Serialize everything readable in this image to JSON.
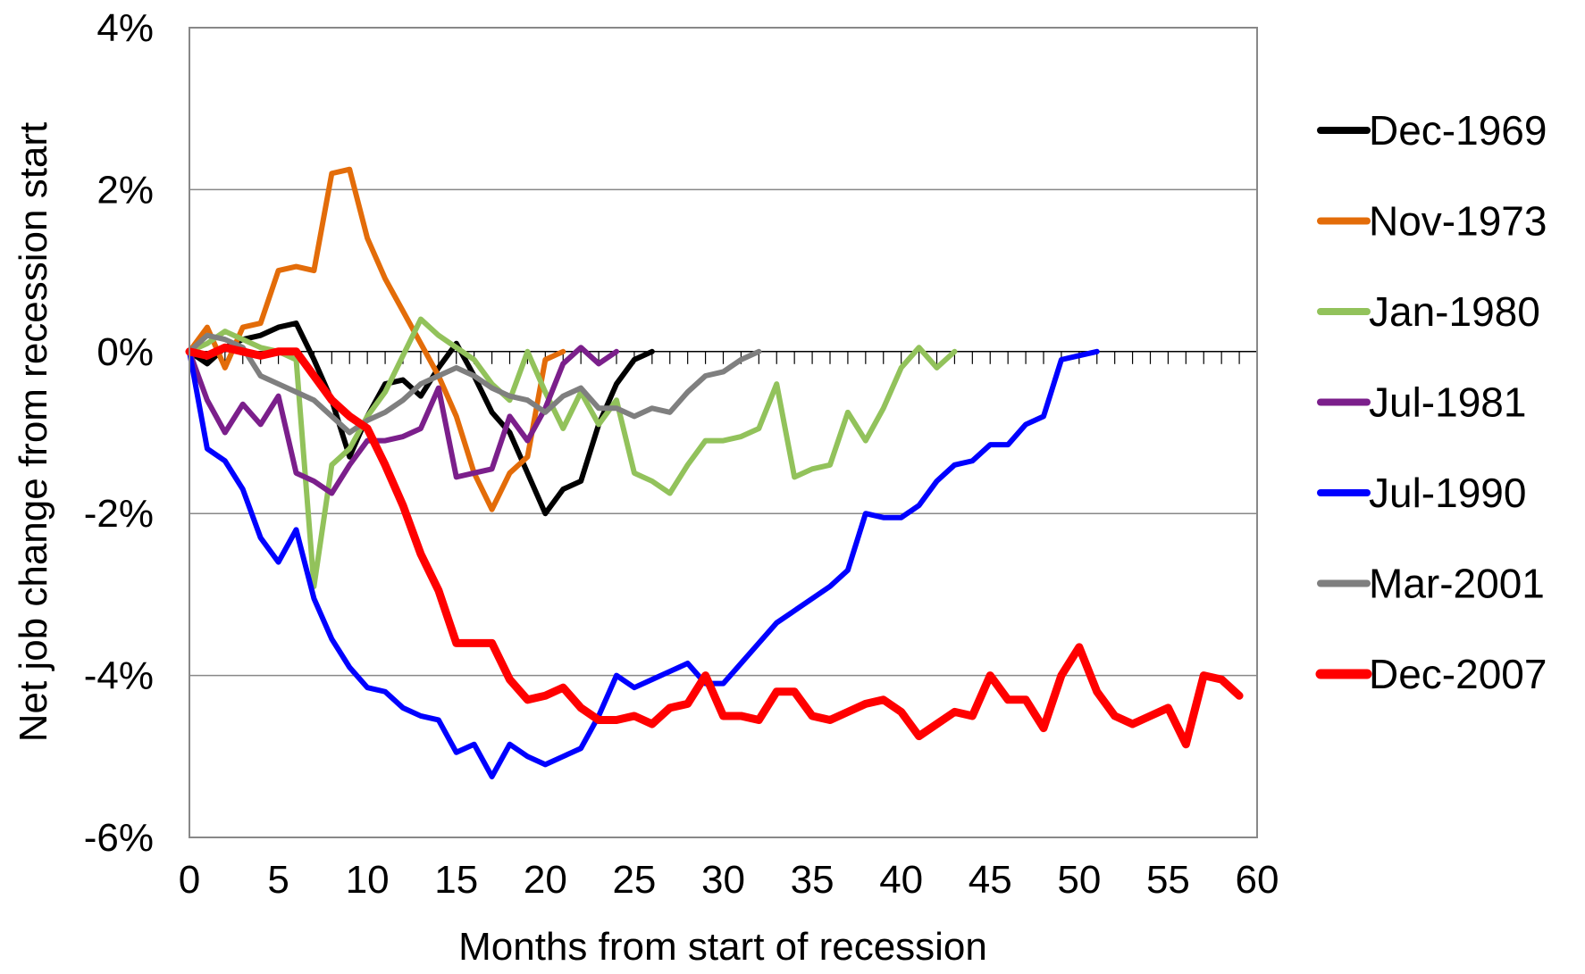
{
  "chart_data": {
    "type": "line",
    "title": "",
    "xlabel": "Months from start of recession",
    "ylabel": "Net job change from recession start",
    "xlim": [
      0,
      60
    ],
    "ylim": [
      -6,
      4
    ],
    "x_ticks": [
      "0",
      "5",
      "10",
      "15",
      "20",
      "25",
      "30",
      "35",
      "40",
      "45",
      "50",
      "55",
      "60"
    ],
    "y_ticks": [
      "4%",
      "2%",
      "0%",
      "-2%",
      "-4%",
      "-6%"
    ],
    "grid": "horizontal",
    "legend_position": "right",
    "series": [
      {
        "name": "Dec-1969",
        "color": "#000000",
        "values": [
          0,
          -0.15,
          0.05,
          0.15,
          0.2,
          0.3,
          0.35,
          -0.1,
          -0.6,
          -1.3,
          -0.8,
          -0.4,
          -0.35,
          -0.55,
          -0.2,
          0.1,
          -0.3,
          -0.75,
          -1.0,
          -1.5,
          -2.0,
          -1.7,
          -1.6,
          -0.9,
          -0.4,
          -0.1,
          0.0
        ]
      },
      {
        "name": "Nov-1973",
        "color": "#E36C09",
        "values": [
          0,
          0.3,
          -0.2,
          0.3,
          0.35,
          1.0,
          1.05,
          1.0,
          2.2,
          2.25,
          1.4,
          0.9,
          0.5,
          0.1,
          -0.3,
          -0.8,
          -1.5,
          -1.95,
          -1.5,
          -1.3,
          -0.1,
          0.0
        ]
      },
      {
        "name": "Jan-1980",
        "color": "#92C25B",
        "values": [
          0,
          0.1,
          0.25,
          0.15,
          0.05,
          0.0,
          -0.1,
          -2.9,
          -1.4,
          -1.2,
          -0.8,
          -0.5,
          -0.05,
          0.4,
          0.2,
          0.05,
          -0.1,
          -0.4,
          -0.6,
          0.0,
          -0.5,
          -0.95,
          -0.5,
          -0.9,
          -0.6,
          -1.5,
          -1.6,
          -1.75,
          -1.4,
          -1.1,
          -1.1,
          -1.05,
          -0.95,
          -0.4,
          -1.55,
          -1.45,
          -1.4,
          -0.75,
          -1.1,
          -0.7,
          -0.2,
          0.05,
          -0.2,
          0.0
        ]
      },
      {
        "name": "Jul-1981",
        "color": "#7B1F8B",
        "values": [
          0,
          -0.6,
          -1.0,
          -0.65,
          -0.9,
          -0.55,
          -1.5,
          -1.6,
          -1.75,
          -1.4,
          -1.1,
          -1.1,
          -1.05,
          -0.95,
          -0.45,
          -1.55,
          -1.5,
          -1.45,
          -0.8,
          -1.1,
          -0.7,
          -0.15,
          0.05,
          -0.15,
          0.0
        ]
      },
      {
        "name": "Jul-1990",
        "color": "#0000FF",
        "values": [
          0,
          -1.2,
          -1.35,
          -1.7,
          -2.3,
          -2.6,
          -2.2,
          -3.05,
          -3.55,
          -3.9,
          -4.15,
          -4.2,
          -4.4,
          -4.5,
          -4.55,
          -4.95,
          -4.85,
          -5.25,
          -4.85,
          -5.0,
          -5.1,
          -5.0,
          -4.9,
          -4.5,
          -4.0,
          -4.15,
          -4.05,
          -3.95,
          -3.85,
          -4.1,
          -4.1,
          -3.85,
          -3.6,
          -3.35,
          -3.2,
          -3.05,
          -2.9,
          -2.7,
          -2.0,
          -2.05,
          -2.05,
          -1.9,
          -1.6,
          -1.4,
          -1.35,
          -1.15,
          -1.15,
          -0.9,
          -0.8,
          -0.1,
          -0.05,
          0.0
        ]
      },
      {
        "name": "Mar-2001",
        "color": "#7F7F7F",
        "values": [
          0,
          0.2,
          0.15,
          0.05,
          -0.3,
          -0.4,
          -0.5,
          -0.6,
          -0.8,
          -1.0,
          -0.85,
          -0.75,
          -0.6,
          -0.4,
          -0.3,
          -0.2,
          -0.3,
          -0.45,
          -0.55,
          -0.6,
          -0.75,
          -0.55,
          -0.45,
          -0.7,
          -0.7,
          -0.8,
          -0.7,
          -0.75,
          -0.5,
          -0.3,
          -0.25,
          -0.1,
          0.0
        ]
      },
      {
        "name": "Dec-2007",
        "color": "#FF0000",
        "values": [
          0,
          -0.05,
          0.05,
          0.0,
          -0.05,
          0.0,
          0.0,
          -0.3,
          -0.6,
          -0.8,
          -0.95,
          -1.4,
          -1.9,
          -2.5,
          -2.95,
          -3.6,
          -3.6,
          -3.6,
          -4.05,
          -4.3,
          -4.25,
          -4.15,
          -4.4,
          -4.55,
          -4.55,
          -4.5,
          -4.6,
          -4.4,
          -4.35,
          -4.0,
          -4.5,
          -4.5,
          -4.55,
          -4.2,
          -4.2,
          -4.5,
          -4.55,
          -4.45,
          -4.35,
          -4.3,
          -4.45,
          -4.75,
          -4.6,
          -4.45,
          -4.5,
          -4.0,
          -4.3,
          -4.3,
          -4.65,
          -4.0,
          -3.65,
          -4.2,
          -4.5,
          -4.6,
          -4.5,
          -4.4,
          -4.85,
          -4.0,
          -4.05,
          -4.25
        ]
      }
    ]
  }
}
